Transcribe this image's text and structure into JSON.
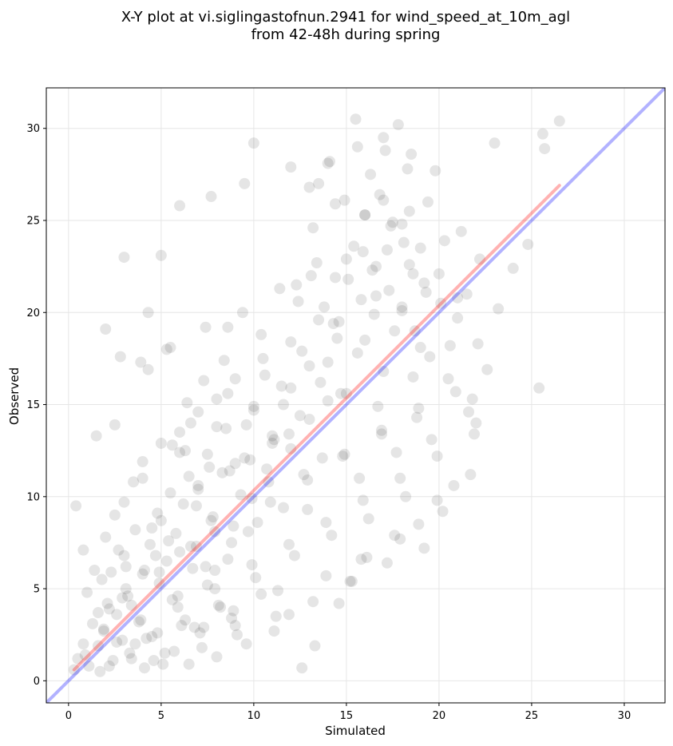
{
  "chart_data": {
    "type": "scatter",
    "title_lines": [
      "X-Y plot at vi.siglingastofnun.2941 for wind_speed_at_10m_agl",
      "from 42-48h during spring"
    ],
    "xlabel": "Simulated",
    "ylabel": "Observed",
    "xlim": [
      -1.2,
      32.2
    ],
    "ylim": [
      -1.2,
      32.2
    ],
    "xticks": [
      0,
      5,
      10,
      15,
      20,
      25,
      30
    ],
    "yticks": [
      0,
      5,
      10,
      15,
      20,
      25,
      30
    ],
    "xtick_labels": [
      "0",
      "5",
      "10",
      "15",
      "20",
      "25",
      "30"
    ],
    "ytick_labels": [
      "0",
      "5",
      "10",
      "15",
      "20",
      "25",
      "30"
    ],
    "grid": true,
    "point_color": "#000000",
    "point_alpha": 0.1,
    "identity_line": {
      "x": [
        -1.2,
        32.2
      ],
      "y": [
        -1.2,
        32.2
      ],
      "color": "#0000ff",
      "alpha": 0.3
    },
    "regression_line": {
      "x": [
        0.3,
        26.5
      ],
      "y": [
        0.6,
        26.9
      ],
      "color": "#ff0000",
      "alpha": 0.3
    },
    "points": {
      "x": [
        0.3,
        0.5,
        0.8,
        1.1,
        1.3,
        1.6,
        1.9,
        2.1,
        2.4,
        2.6,
        2.9,
        3.1,
        3.4,
        3.8,
        4.1,
        4.5,
        4.9,
        5.2,
        5.6,
        6.0,
        6.3,
        6.7,
        7.1,
        7.5,
        7.9,
        8.2,
        8.6,
        9.0,
        1.0,
        1.4,
        1.8,
        2.2,
        2.7,
        3.2,
        3.6,
        4.0,
        4.4,
        4.8,
        5.3,
        5.8,
        6.2,
        6.6,
        7.0,
        7.4,
        7.8,
        8.3,
        8.8,
        9.3,
        9.8,
        10.2,
        10.7,
        11.1,
        11.6,
        12.0,
        2.0,
        2.5,
        3.0,
        3.5,
        4.0,
        4.5,
        5.0,
        5.5,
        6.0,
        6.5,
        7.0,
        7.5,
        8.0,
        8.5,
        9.0,
        9.5,
        10.0,
        10.5,
        11.0,
        11.5,
        12.0,
        12.5,
        13.0,
        13.5,
        14.0,
        14.5,
        3.3,
        4.2,
        5.1,
        6.1,
        7.2,
        8.1,
        9.1,
        10.1,
        11.2,
        12.2,
        13.2,
        14.2,
        15.2,
        16.2,
        17.2,
        18.2,
        19.2,
        20.2,
        4.3,
        5.3,
        6.4,
        7.4,
        8.4,
        9.4,
        10.4,
        11.4,
        12.4,
        13.4,
        14.4,
        15.4,
        16.4,
        17.4,
        18.4,
        19.4,
        5.6,
        6.6,
        7.6,
        8.6,
        9.6,
        10.6,
        11.6,
        12.6,
        13.6,
        14.6,
        15.6,
        16.6,
        17.6,
        18.6,
        3.0,
        4.0,
        5.0,
        6.0,
        7.0,
        8.0,
        9.0,
        10.0,
        11.0,
        12.0,
        13.0,
        14.0,
        15.0,
        16.0,
        17.0,
        18.0,
        19.0,
        2.2,
        3.1,
        4.6,
        5.4,
        6.8,
        7.7,
        8.9,
        9.9,
        11.3,
        12.7,
        13.9,
        14.8,
        15.8,
        16.9,
        17.9,
        18.8,
        13.5,
        14.1,
        14.9,
        15.6,
        16.3,
        17.1,
        17.8,
        18.3,
        16.0,
        16.8,
        17.5,
        18.1,
        19.2,
        20.1,
        21.0,
        22.1,
        15.5,
        17.0,
        18.5,
        19.8,
        21.5,
        13.2,
        14.4,
        15.9,
        16.6,
        17.3,
        18.0,
        18.7,
        19.5,
        20.5,
        21.8,
        22.0,
        14.6,
        15.3,
        16.1,
        17.6,
        18.9,
        19.9,
        20.8,
        21.7,
        10.0,
        12.0,
        13.0,
        14.0,
        15.0,
        16.0,
        17.0,
        18.0,
        19.0,
        20.0,
        21.0,
        23.0,
        25.4,
        25.6,
        25.7,
        26.5,
        2.0,
        2.8,
        3.0,
        5.0,
        6.0,
        7.7,
        9.5,
        0.4,
        0.8,
        1.5,
        2.5,
        3.9,
        4.3,
        5.5,
        6.3,
        7.3,
        8.6,
        1.6,
        2.3,
        3.6,
        4.7,
        5.9,
        6.9,
        7.9,
        8.7,
        9.7,
        10.8,
        11.9,
        12.9,
        13.7,
        14.7,
        15.7,
        16.7,
        17.7,
        18.6,
        19.6,
        20.6,
        21.6,
        22.6,
        1.9,
        2.9,
        3.9,
        4.9,
        5.9,
        6.9,
        7.9,
        8.9,
        9.9,
        10.9,
        11.9,
        12.9,
        13.9,
        14.9,
        15.9,
        16.9,
        17.9,
        18.9,
        19.9,
        20.9,
        21.9,
        12.3,
        13.1,
        13.8,
        14.3,
        15.1,
        15.8,
        16.5,
        17.2,
        18.4,
        19.3,
        20.3,
        21.2,
        22.2,
        23.2,
        24.0,
        24.8,
        0.9,
        1.7,
        2.6,
        3.4,
        4.1,
        4.8,
        5.7,
        6.5,
        7.3,
        8.0,
        8.8,
        9.6,
        10.4,
        11.1,
        11.9,
        12.6,
        13.3
      ],
      "y": [
        0.6,
        1.2,
        2.0,
        0.8,
        3.1,
        1.9,
        2.7,
        4.2,
        1.1,
        3.6,
        2.2,
        5.0,
        4.1,
        3.2,
        6.0,
        2.4,
        5.3,
        1.5,
        4.4,
        7.0,
        3.3,
        6.1,
        2.6,
        5.2,
        8.1,
        4.0,
        6.6,
        3.0,
        4.8,
        6.0,
        5.5,
        3.9,
        7.1,
        4.6,
        8.2,
        5.8,
        7.4,
        9.1,
        6.5,
        8.0,
        9.6,
        7.3,
        10.4,
        6.2,
        8.9,
        11.3,
        7.5,
        10.1,
        12.0,
        8.6,
        11.5,
        13.1,
        9.4,
        12.6,
        7.8,
        9.0,
        6.8,
        10.8,
        11.9,
        8.3,
        12.9,
        10.2,
        13.5,
        11.1,
        14.6,
        12.3,
        15.3,
        13.7,
        16.4,
        12.1,
        14.9,
        17.5,
        13.3,
        16.0,
        18.4,
        14.4,
        17.1,
        19.6,
        15.2,
        18.6,
        1.5,
        2.3,
        0.9,
        3.0,
        1.8,
        4.1,
        2.5,
        5.6,
        3.5,
        6.8,
        4.3,
        7.9,
        5.4,
        8.8,
        6.4,
        10.0,
        7.2,
        9.2,
        16.9,
        18.0,
        15.1,
        19.2,
        17.4,
        20.0,
        18.8,
        21.3,
        20.6,
        22.7,
        21.9,
        23.6,
        22.3,
        24.7,
        25.5,
        26.0,
        12.8,
        14.0,
        11.6,
        15.6,
        13.9,
        16.6,
        15.0,
        17.9,
        16.2,
        19.5,
        17.8,
        20.9,
        19.0,
        22.1,
        9.7,
        11.0,
        8.7,
        12.4,
        10.6,
        13.8,
        11.8,
        14.7,
        12.9,
        15.9,
        14.2,
        17.3,
        15.6,
        18.5,
        16.8,
        20.3,
        18.1,
        0.8,
        6.2,
        1.1,
        7.6,
        2.9,
        8.7,
        3.8,
        9.9,
        4.9,
        11.2,
        5.7,
        12.2,
        6.6,
        13.4,
        7.7,
        14.3,
        27.0,
        28.2,
        26.1,
        29.0,
        27.5,
        28.8,
        30.2,
        27.8,
        25.3,
        26.4,
        24.9,
        23.8,
        21.6,
        20.5,
        19.7,
        18.3,
        30.5,
        29.5,
        28.6,
        27.7,
        21.0,
        24.6,
        25.9,
        23.3,
        22.5,
        21.2,
        20.1,
        19.0,
        17.6,
        16.4,
        15.3,
        14.0,
        4.2,
        5.4,
        6.7,
        7.9,
        8.5,
        9.8,
        10.6,
        11.2,
        29.2,
        27.9,
        26.8,
        28.1,
        22.9,
        25.3,
        26.1,
        24.8,
        23.5,
        22.1,
        20.8,
        29.2,
        15.9,
        29.7,
        28.9,
        30.4,
        19.1,
        17.6,
        23.0,
        23.1,
        25.8,
        26.3,
        27.0,
        9.5,
        7.1,
        13.3,
        13.9,
        17.3,
        20.0,
        18.1,
        12.5,
        16.3,
        19.2,
        3.7,
        5.9,
        2.0,
        6.8,
        4.6,
        9.5,
        6.0,
        11.4,
        8.1,
        10.8,
        13.4,
        9.3,
        12.1,
        15.6,
        11.0,
        14.9,
        12.4,
        16.5,
        13.1,
        18.2,
        14.6,
        16.9,
        2.8,
        4.5,
        3.3,
        5.9,
        4.0,
        7.3,
        5.0,
        8.4,
        6.3,
        9.7,
        7.4,
        10.9,
        8.6,
        12.3,
        9.8,
        13.6,
        11.0,
        14.8,
        12.2,
        15.7,
        13.4,
        21.5,
        22.0,
        20.3,
        19.4,
        21.8,
        20.7,
        19.9,
        23.4,
        22.6,
        21.1,
        23.9,
        24.4,
        22.9,
        20.2,
        22.4,
        23.7,
        1.4,
        0.5,
        2.1,
        1.2,
        0.7,
        2.6,
        1.6,
        0.9,
        2.9,
        1.3,
        3.4,
        2.0,
        4.7,
        2.7,
        3.6,
        0.7,
        1.9
      ]
    }
  }
}
